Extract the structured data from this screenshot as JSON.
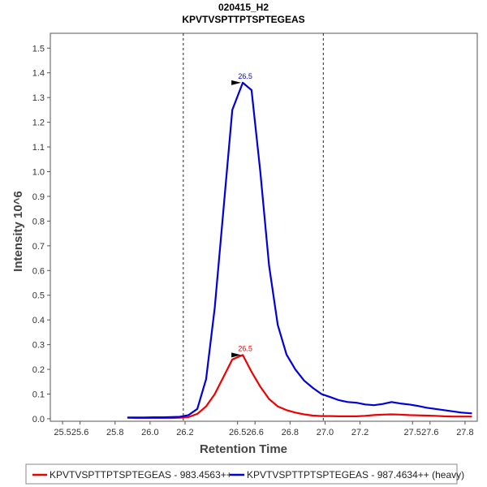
{
  "chart_data": {
    "type": "line",
    "title": "020415_H2",
    "subtitle": "KPVTVSPTTPTSPTEGEAS",
    "xlabel": "Retention Time",
    "ylabel": "Intensity 10^6",
    "xlim": [
      25.43,
      27.87
    ],
    "ylim": [
      -0.01,
      1.56
    ],
    "x_ticks": [
      "25.5",
      "25.6",
      "25.8",
      "26.0",
      "26.2",
      "26.5",
      "26.6",
      "26.8",
      "27.0",
      "27.2",
      "27.5",
      "27.6",
      "27.8"
    ],
    "x_tick_values": [
      25.5,
      25.6,
      25.8,
      26.0,
      26.2,
      26.5,
      26.6,
      26.8,
      27.0,
      27.2,
      27.5,
      27.6,
      27.8
    ],
    "y_ticks": [
      "0.0",
      "0.1",
      "0.2",
      "0.3",
      "0.4",
      "0.5",
      "0.6",
      "0.7",
      "0.8",
      "0.9",
      "1.0",
      "1.1",
      "1.2",
      "1.3",
      "1.4",
      "1.5"
    ],
    "y_tick_values": [
      0.0,
      0.1,
      0.2,
      0.3,
      0.4,
      0.5,
      0.6,
      0.7,
      0.8,
      0.9,
      1.0,
      1.1,
      1.2,
      1.3,
      1.4,
      1.5
    ],
    "vlines": [
      26.19,
      26.99
    ],
    "legend_position": "bottom",
    "series": [
      {
        "name": "KPVTVSPTTPTSPTEGEAS - 983.4563++",
        "color": "#ee0000",
        "peak_label": "26.5",
        "peak": [
          26.53,
          0.258
        ],
        "points": [
          [
            25.87,
            0.004
          ],
          [
            25.92,
            0.003
          ],
          [
            25.97,
            0.003
          ],
          [
            26.02,
            0.003
          ],
          [
            26.07,
            0.003
          ],
          [
            26.12,
            0.003
          ],
          [
            26.17,
            0.004
          ],
          [
            26.22,
            0.007
          ],
          [
            26.27,
            0.02
          ],
          [
            26.32,
            0.05
          ],
          [
            26.37,
            0.1
          ],
          [
            26.42,
            0.17
          ],
          [
            26.47,
            0.24
          ],
          [
            26.53,
            0.258
          ],
          [
            26.58,
            0.19
          ],
          [
            26.63,
            0.13
          ],
          [
            26.68,
            0.08
          ],
          [
            26.73,
            0.05
          ],
          [
            26.78,
            0.035
          ],
          [
            26.83,
            0.025
          ],
          [
            26.88,
            0.018
          ],
          [
            26.93,
            0.013
          ],
          [
            26.98,
            0.011
          ],
          [
            27.03,
            0.011
          ],
          [
            27.08,
            0.01
          ],
          [
            27.13,
            0.01
          ],
          [
            27.18,
            0.01
          ],
          [
            27.23,
            0.012
          ],
          [
            27.28,
            0.015
          ],
          [
            27.33,
            0.017
          ],
          [
            27.38,
            0.018
          ],
          [
            27.43,
            0.017
          ],
          [
            27.48,
            0.015
          ],
          [
            27.53,
            0.014
          ],
          [
            27.58,
            0.013
          ],
          [
            27.63,
            0.012
          ],
          [
            27.68,
            0.01
          ],
          [
            27.73,
            0.009
          ],
          [
            27.78,
            0.009
          ],
          [
            27.84,
            0.009
          ]
        ]
      },
      {
        "name": "KPVTVSPTTPTSPTEGEAS - 987.4634++ (heavy)",
        "color": "#0000dd",
        "peak_label": "26.5",
        "peak": [
          26.53,
          1.36
        ],
        "points": [
          [
            25.87,
            0.005
          ],
          [
            25.92,
            0.005
          ],
          [
            25.97,
            0.005
          ],
          [
            26.02,
            0.006
          ],
          [
            26.07,
            0.006
          ],
          [
            26.12,
            0.007
          ],
          [
            26.17,
            0.008
          ],
          [
            26.22,
            0.015
          ],
          [
            26.27,
            0.04
          ],
          [
            26.32,
            0.16
          ],
          [
            26.37,
            0.45
          ],
          [
            26.42,
            0.85
          ],
          [
            26.47,
            1.25
          ],
          [
            26.53,
            1.36
          ],
          [
            26.58,
            1.33
          ],
          [
            26.63,
            1.0
          ],
          [
            26.68,
            0.62
          ],
          [
            26.73,
            0.38
          ],
          [
            26.78,
            0.26
          ],
          [
            26.83,
            0.2
          ],
          [
            26.88,
            0.155
          ],
          [
            26.93,
            0.125
          ],
          [
            26.98,
            0.1
          ],
          [
            27.03,
            0.088
          ],
          [
            27.08,
            0.075
          ],
          [
            27.13,
            0.068
          ],
          [
            27.18,
            0.065
          ],
          [
            27.23,
            0.058
          ],
          [
            27.28,
            0.055
          ],
          [
            27.33,
            0.06
          ],
          [
            27.38,
            0.068
          ],
          [
            27.43,
            0.062
          ],
          [
            27.48,
            0.058
          ],
          [
            27.53,
            0.052
          ],
          [
            27.58,
            0.045
          ],
          [
            27.63,
            0.04
          ],
          [
            27.68,
            0.035
          ],
          [
            27.73,
            0.03
          ],
          [
            27.78,
            0.025
          ],
          [
            27.84,
            0.022
          ]
        ]
      }
    ]
  }
}
